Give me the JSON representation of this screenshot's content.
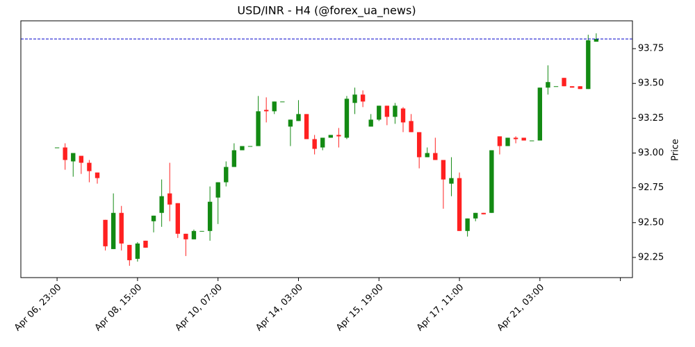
{
  "chart_data": {
    "type": "candlestick",
    "title": "USD/INR - H4 (@forex_ua_news)",
    "y_label": "Price",
    "up_color": "#138a13",
    "down_color": "#ff2020",
    "open": [
      93.04,
      93.04,
      92.94,
      92.98,
      92.93,
      92.86,
      92.52,
      92.31,
      92.57,
      92.34,
      92.24,
      92.37,
      92.51,
      92.57,
      92.71,
      92.64,
      92.42,
      92.38,
      92.44,
      92.44,
      92.68,
      92.79,
      92.9,
      93.02,
      93.05,
      93.05,
      93.31,
      93.3,
      93.37,
      93.19,
      93.23,
      93.28,
      93.1,
      93.04,
      93.11,
      93.13,
      93.11,
      93.36,
      93.42,
      93.19,
      93.24,
      93.34,
      93.26,
      93.32,
      93.23,
      93.15,
      92.97,
      93.0,
      92.95,
      92.78,
      92.82,
      92.44,
      92.53,
      92.57,
      92.57,
      93.12,
      93.05,
      93.11,
      93.11,
      93.09,
      93.09,
      93.47,
      93.48,
      93.54,
      93.48,
      93.48,
      93.46,
      93.8
    ],
    "high": [
      93.04,
      93.07,
      93.0,
      92.98,
      92.95,
      92.86,
      92.52,
      92.71,
      92.62,
      92.34,
      92.36,
      92.37,
      92.55,
      92.81,
      92.93,
      92.64,
      92.42,
      92.45,
      92.44,
      92.76,
      92.79,
      92.94,
      93.07,
      93.05,
      93.05,
      93.41,
      93.4,
      93.37,
      93.37,
      93.24,
      93.38,
      93.28,
      93.13,
      93.11,
      93.13,
      93.18,
      93.41,
      93.47,
      93.45,
      93.28,
      93.34,
      93.34,
      93.36,
      93.33,
      93.28,
      93.15,
      93.04,
      93.11,
      92.95,
      92.97,
      92.86,
      92.53,
      92.57,
      92.57,
      93.02,
      93.12,
      93.11,
      93.12,
      93.11,
      93.09,
      93.47,
      93.63,
      93.48,
      93.54,
      93.48,
      93.48,
      93.85,
      93.86
    ],
    "low": [
      93.04,
      92.88,
      92.83,
      92.85,
      92.79,
      92.78,
      92.3,
      92.31,
      92.3,
      92.19,
      92.22,
      92.32,
      92.43,
      92.47,
      92.51,
      92.39,
      92.26,
      92.38,
      92.44,
      92.37,
      92.49,
      92.76,
      92.9,
      93.02,
      93.05,
      93.05,
      93.22,
      93.28,
      93.37,
      93.05,
      93.23,
      93.1,
      92.99,
      93.02,
      93.11,
      93.04,
      93.1,
      93.28,
      93.33,
      93.19,
      93.23,
      93.2,
      93.21,
      93.15,
      93.15,
      92.89,
      92.97,
      92.95,
      92.6,
      92.69,
      92.44,
      92.4,
      92.51,
      92.56,
      92.57,
      92.99,
      93.05,
      93.07,
      93.09,
      93.09,
      93.09,
      93.42,
      93.48,
      93.48,
      93.47,
      93.46,
      93.46,
      93.8
    ],
    "close": [
      93.04,
      92.95,
      93.0,
      92.93,
      92.87,
      92.82,
      92.33,
      92.57,
      92.35,
      92.23,
      92.35,
      92.32,
      92.55,
      92.69,
      92.63,
      92.42,
      92.38,
      92.44,
      92.44,
      92.65,
      92.79,
      92.9,
      93.02,
      93.05,
      93.05,
      93.3,
      93.3,
      93.37,
      93.37,
      93.24,
      93.28,
      93.1,
      93.03,
      93.11,
      93.13,
      93.12,
      93.39,
      93.42,
      93.37,
      93.24,
      93.34,
      93.26,
      93.34,
      93.22,
      93.15,
      92.97,
      93.0,
      92.95,
      92.81,
      92.82,
      92.44,
      92.53,
      92.57,
      92.56,
      93.02,
      93.05,
      93.11,
      93.1,
      93.09,
      93.09,
      93.47,
      93.51,
      93.48,
      93.48,
      93.47,
      93.46,
      93.81,
      93.82
    ],
    "hline": 93.82,
    "hline_color": "#0000cc",
    "xlim": [
      -4.5,
      71.5
    ],
    "xticks": [
      {
        "value": 0,
        "label": "Apr 06, 23:00"
      },
      {
        "value": 10,
        "label": "Apr 08, 15:00"
      },
      {
        "value": 20,
        "label": "Apr 10, 07:00"
      },
      {
        "value": 30,
        "label": "Apr 14, 03:00"
      },
      {
        "value": 40,
        "label": "Apr 15, 19:00"
      },
      {
        "value": 50,
        "label": "Apr 17, 11:00"
      },
      {
        "value": 60,
        "label": "Apr 21, 03:00"
      },
      {
        "value": 70,
        "label": null
      }
    ],
    "ylim": [
      92.105,
      93.95
    ],
    "yticks": [
      92.25,
      {
        "value": 92.5,
        "label": "92.50"
      },
      92.75,
      {
        "value": 93.0,
        "label": "93.00"
      },
      93.25,
      {
        "value": 93.5,
        "label": "93.50"
      },
      93.75
    ]
  }
}
